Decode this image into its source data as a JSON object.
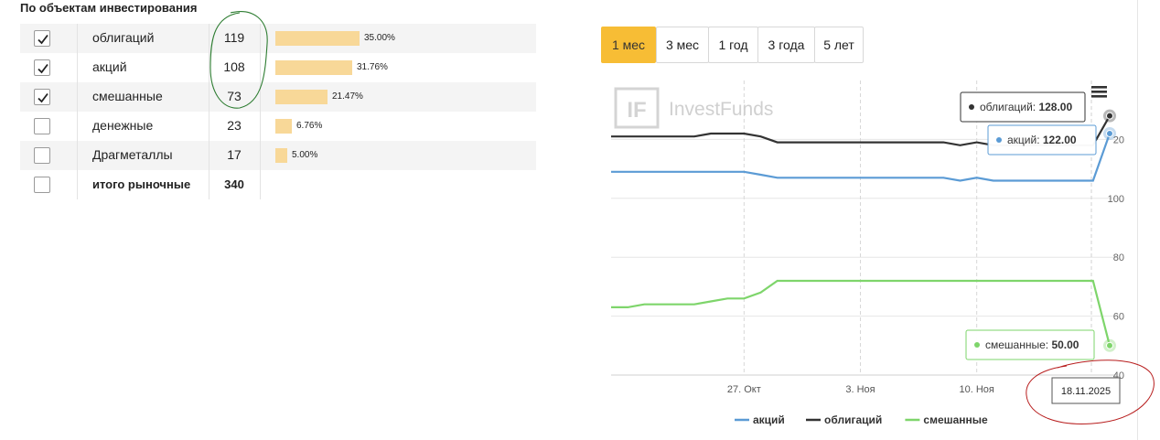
{
  "section_title": "По объектам инвестирования",
  "rows": [
    {
      "label": "облигаций",
      "count": "119",
      "pct": "35.00%",
      "share": 0.35,
      "checked": true
    },
    {
      "label": "акций",
      "count": "108",
      "pct": "31.76%",
      "share": 0.3176,
      "checked": true
    },
    {
      "label": "смешанные",
      "count": "73",
      "pct": "21.47%",
      "share": 0.2147,
      "checked": true
    },
    {
      "label": "денежные",
      "count": "23",
      "pct": "6.76%",
      "share": 0.0676,
      "checked": false
    },
    {
      "label": "Драгметаллы",
      "count": "17",
      "pct": "5.00%",
      "share": 0.05,
      "checked": false
    }
  ],
  "total": {
    "label": "итого рыночные",
    "count": "340",
    "checked": false
  },
  "periods": [
    {
      "label": "1 мес",
      "active": true
    },
    {
      "label": "3 мес",
      "active": false
    },
    {
      "label": "1 год",
      "active": false
    },
    {
      "label": "3 года",
      "active": false
    },
    {
      "label": "5 лет",
      "active": false
    }
  ],
  "chart": {
    "watermark": "InvestFunds",
    "watermark_logo": "IF",
    "menu_icon": "hamburger-menu-icon",
    "tooltip_date": "18.11.2025",
    "tooltips": [
      {
        "series": "облигаций",
        "label": "облигаций: ",
        "value": "128.00"
      },
      {
        "series": "акций",
        "label": "акций: ",
        "value": "122.00"
      },
      {
        "series": "смешанные",
        "label": "смешанные: ",
        "value": "50.00"
      }
    ],
    "y_tick_partial": "20"
  },
  "chart_data": {
    "type": "line",
    "x_ticks": [
      "27. Окт",
      "3. Ноя",
      "10. Ноя"
    ],
    "y_ticks": [
      40,
      60,
      80,
      100
    ],
    "ylim": [
      40,
      140
    ],
    "grid": true,
    "legend_position": "bottom",
    "x": [
      "2025-10-19",
      "2025-10-20",
      "2025-10-21",
      "2025-10-22",
      "2025-10-23",
      "2025-10-24",
      "2025-10-25",
      "2025-10-26",
      "2025-10-27",
      "2025-10-28",
      "2025-10-29",
      "2025-10-30",
      "2025-10-31",
      "2025-11-01",
      "2025-11-02",
      "2025-11-03",
      "2025-11-04",
      "2025-11-05",
      "2025-11-06",
      "2025-11-07",
      "2025-11-08",
      "2025-11-09",
      "2025-11-10",
      "2025-11-11",
      "2025-11-12",
      "2025-11-13",
      "2025-11-14",
      "2025-11-15",
      "2025-11-16",
      "2025-11-17",
      "2025-11-18"
    ],
    "series": [
      {
        "name": "акций",
        "color": "#5b9bd5",
        "values": [
          109,
          109,
          109,
          109,
          109,
          109,
          109,
          109,
          109,
          108,
          107,
          107,
          107,
          107,
          107,
          107,
          107,
          107,
          107,
          107,
          107,
          106,
          107,
          106,
          106,
          106,
          106,
          106,
          106,
          106,
          122
        ]
      },
      {
        "name": "облигаций",
        "color": "#333333",
        "values": [
          121,
          121,
          121,
          121,
          121,
          121,
          122,
          122,
          122,
          121,
          119,
          119,
          119,
          119,
          119,
          119,
          119,
          119,
          119,
          119,
          119,
          118,
          119,
          118,
          118,
          118,
          118,
          118,
          118,
          118,
          128
        ]
      },
      {
        "name": "смешанные",
        "color": "#7ed56b",
        "values": [
          63,
          63,
          64,
          64,
          64,
          64,
          65,
          66,
          66,
          68,
          72,
          72,
          72,
          72,
          72,
          72,
          72,
          72,
          72,
          72,
          72,
          72,
          72,
          72,
          72,
          72,
          72,
          72,
          72,
          72,
          50
        ]
      }
    ]
  }
}
